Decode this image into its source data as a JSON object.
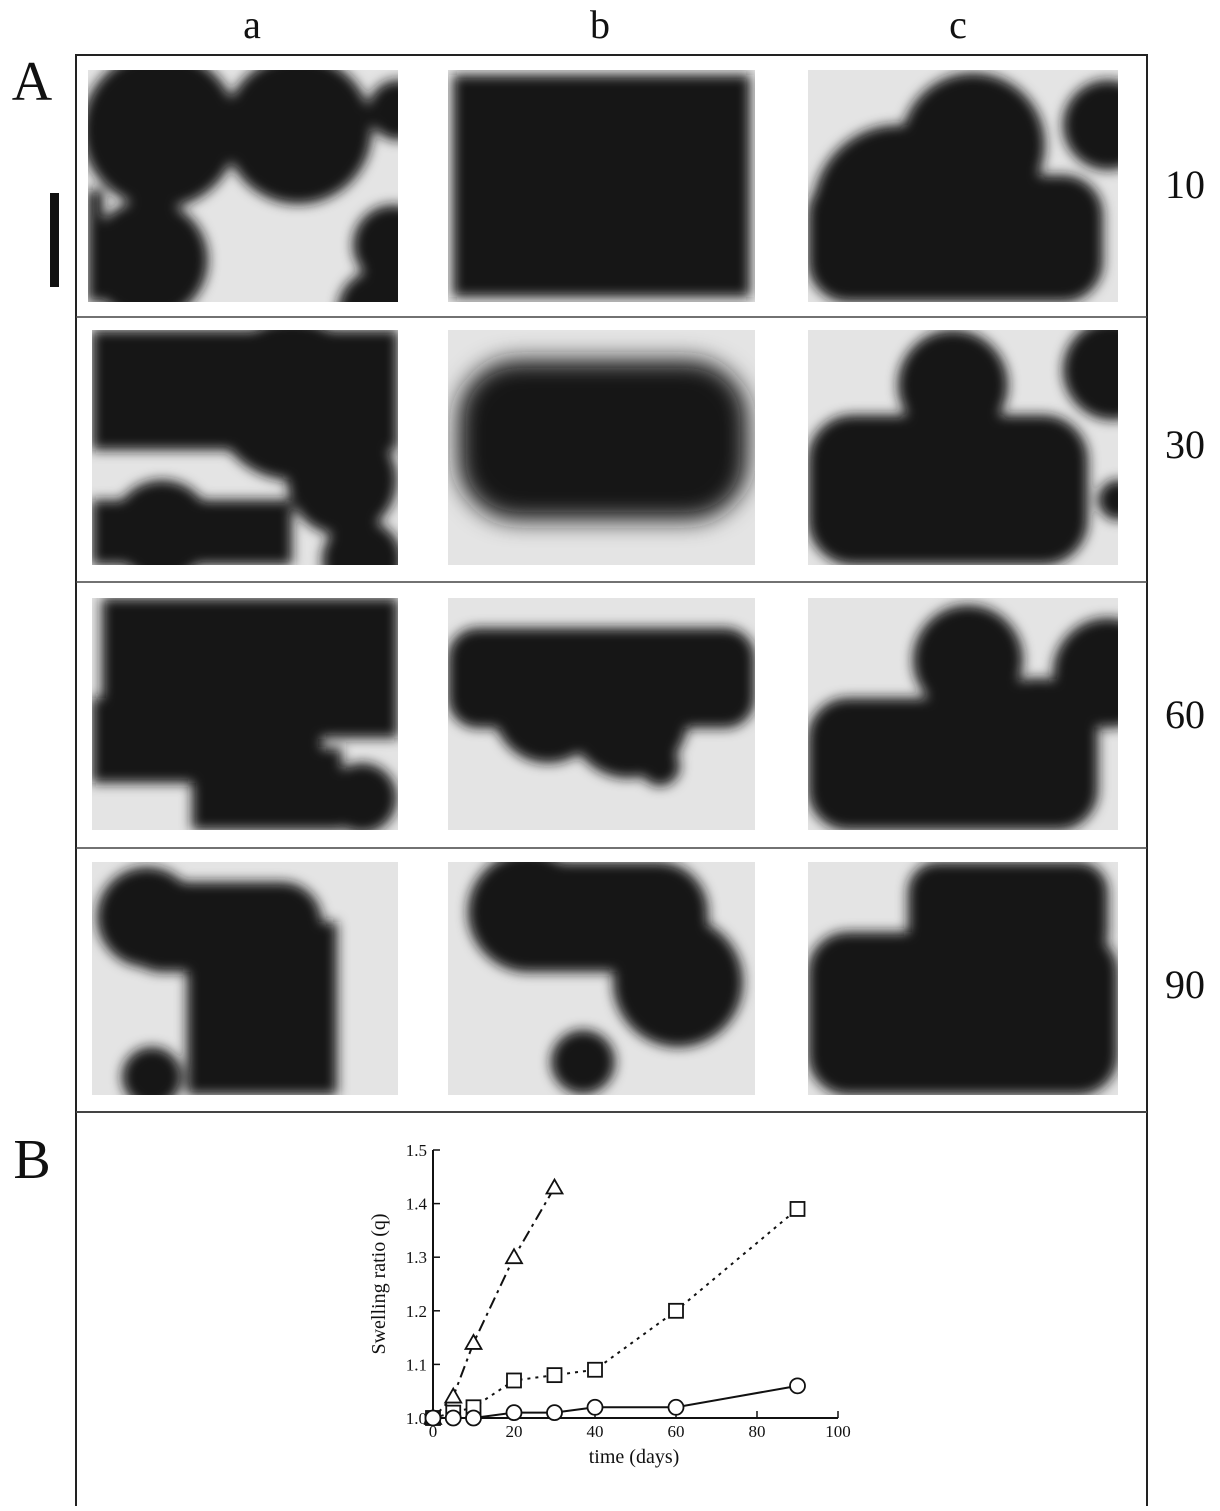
{
  "column_labels": [
    "a",
    "b",
    "c"
  ],
  "panel_labels": [
    "A",
    "B"
  ],
  "row_labels": [
    "10",
    "30",
    "60",
    "90"
  ],
  "chart_data": {
    "type": "line",
    "xlabel": "time (days)",
    "ylabel": "Swelling ratio (q)",
    "xlim": [
      0,
      100
    ],
    "ylim": [
      1,
      1.5
    ],
    "xticks": [
      0,
      20,
      40,
      60,
      80,
      100
    ],
    "yticks": [
      {
        "value": 1,
        "label": "1.0"
      },
      1.1,
      1.2,
      1.3,
      1.4,
      1.5
    ],
    "series": [
      {
        "color": "#111111",
        "marker": "triangle",
        "linestyle": "dashdot",
        "x": [
          0,
          5,
          10,
          20,
          30
        ],
        "values": [
          1.0,
          1.04,
          1.14,
          1.3,
          1.43
        ]
      },
      {
        "color": "#111111",
        "marker": "square",
        "linestyle": "dotted",
        "x": [
          0,
          5,
          10,
          20,
          30,
          40,
          60,
          90
        ],
        "values": [
          1.0,
          1.01,
          1.02,
          1.07,
          1.08,
          1.09,
          1.2,
          1.39
        ]
      },
      {
        "color": "#111111",
        "marker": "circle",
        "linestyle": "solid",
        "x": [
          0,
          5,
          10,
          20,
          30,
          40,
          60,
          90
        ],
        "values": [
          1.0,
          1.0,
          1.0,
          1.01,
          1.01,
          1.02,
          1.02,
          1.06
        ]
      }
    ]
  }
}
